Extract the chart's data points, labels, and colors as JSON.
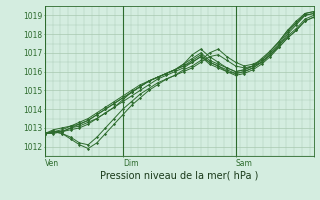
{
  "xlabel": "Pression niveau de la mer( hPa )",
  "bg_color": "#d4ede0",
  "grid_color": "#a8c8b0",
  "line_color": "#2d6b2d",
  "vline_color": "#2d6b2d",
  "ylim": [
    1011.5,
    1019.5
  ],
  "yticks": [
    1012,
    1013,
    1014,
    1015,
    1016,
    1017,
    1018,
    1019
  ],
  "xtick_positions": [
    0,
    0.29,
    0.71,
    1.0
  ],
  "xtick_labels": [
    "Ven",
    "Dim",
    "Sam",
    ""
  ],
  "vline_positions": [
    0.0,
    0.29,
    0.71
  ],
  "series": [
    [
      1012.7,
      1012.8,
      1012.8,
      1013.0,
      1013.1,
      1013.3,
      1013.5,
      1013.8,
      1014.1,
      1014.5,
      1014.9,
      1015.2,
      1015.5,
      1015.7,
      1015.9,
      1016.1,
      1016.4,
      1016.9,
      1017.2,
      1016.8,
      1016.5,
      1016.2,
      1016.0,
      1016.1,
      1016.3,
      1016.6,
      1017.0,
      1017.5,
      1018.1,
      1018.6,
      1019.0,
      1019.1
    ],
    [
      1012.7,
      1012.8,
      1012.7,
      1012.5,
      1012.2,
      1012.1,
      1012.5,
      1013.0,
      1013.5,
      1014.0,
      1014.4,
      1014.8,
      1015.1,
      1015.4,
      1015.6,
      1015.8,
      1016.0,
      1016.2,
      1016.5,
      1016.8,
      1016.9,
      1016.6,
      1016.3,
      1016.2,
      1016.3,
      1016.5,
      1016.9,
      1017.4,
      1018.0,
      1018.5,
      1019.0,
      1019.1
    ],
    [
      1012.7,
      1012.8,
      1012.7,
      1012.4,
      1012.1,
      1011.9,
      1012.2,
      1012.7,
      1013.2,
      1013.7,
      1014.2,
      1014.6,
      1015.0,
      1015.3,
      1015.6,
      1015.8,
      1016.1,
      1016.3,
      1016.6,
      1017.0,
      1017.2,
      1016.8,
      1016.5,
      1016.3,
      1016.4,
      1016.6,
      1017.1,
      1017.6,
      1018.2,
      1018.7,
      1019.1,
      1019.2
    ],
    [
      1012.7,
      1012.9,
      1013.0,
      1013.1,
      1013.2,
      1013.4,
      1013.7,
      1014.0,
      1014.3,
      1014.6,
      1014.9,
      1015.2,
      1015.5,
      1015.7,
      1015.9,
      1016.1,
      1016.3,
      1016.6,
      1016.9,
      1016.5,
      1016.3,
      1016.1,
      1015.9,
      1016.0,
      1016.2,
      1016.5,
      1016.9,
      1017.4,
      1017.9,
      1018.3,
      1018.8,
      1019.0
    ],
    [
      1012.7,
      1012.8,
      1012.8,
      1012.9,
      1013.0,
      1013.2,
      1013.5,
      1013.8,
      1014.1,
      1014.4,
      1014.7,
      1015.0,
      1015.3,
      1015.6,
      1015.8,
      1016.0,
      1016.2,
      1016.5,
      1016.8,
      1016.4,
      1016.2,
      1016.0,
      1015.8,
      1015.9,
      1016.1,
      1016.4,
      1016.8,
      1017.3,
      1017.8,
      1018.2,
      1018.7,
      1018.9
    ],
    [
      1012.7,
      1012.8,
      1012.9,
      1013.1,
      1013.3,
      1013.5,
      1013.8,
      1014.1,
      1014.4,
      1014.7,
      1015.0,
      1015.3,
      1015.5,
      1015.7,
      1015.9,
      1016.1,
      1016.3,
      1016.5,
      1016.8,
      1016.5,
      1016.3,
      1016.0,
      1015.9,
      1016.0,
      1016.2,
      1016.5,
      1016.9,
      1017.3,
      1017.8,
      1018.2,
      1018.7,
      1018.9
    ],
    [
      1012.7,
      1012.7,
      1012.8,
      1013.0,
      1013.2,
      1013.4,
      1013.7,
      1014.0,
      1014.3,
      1014.6,
      1014.9,
      1015.2,
      1015.5,
      1015.7,
      1015.9,
      1016.1,
      1016.4,
      1016.7,
      1017.0,
      1016.6,
      1016.4,
      1016.2,
      1016.0,
      1016.1,
      1016.3,
      1016.7,
      1017.1,
      1017.6,
      1018.2,
      1018.6,
      1019.1,
      1019.2
    ]
  ],
  "ylabel_fontsize": 5.5,
  "xlabel_fontsize": 7.0,
  "tick_labelsize": 5.5
}
